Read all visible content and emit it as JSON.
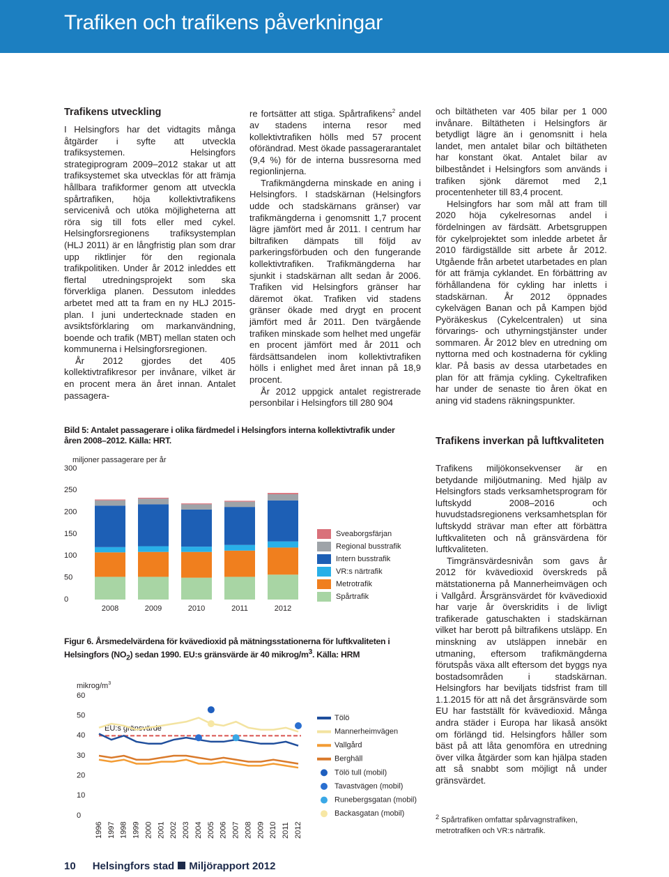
{
  "header": {
    "title": "Trafiken och trafikens påverkningar"
  },
  "column1": {
    "heading": "Trafikens utveckling",
    "paragraphs": [
      "I Helsingfors har det vidtagits många åtgärder i syfte att utveckla trafiksystemen. Helsingfors strategiprogram 2009–2012 stakar ut att trafiksystemet ska utvecklas för att främja hållbara trafikformer genom att utveckla spårtrafiken, höja kollektivtrafikens servicenivå och utöka möjligheterna att röra sig till fots eller med cykel. Helsingforsregionens trafiksystemplan (HLJ 2011) är en långfristig plan som drar upp riktlinjer för den regionala trafikpolitiken. Under år 2012 inleddes ett flertal utredningsprojekt som ska förverkliga planen. Dessutom inleddes arbetet med att ta fram en ny HLJ 2015-plan. I juni undertecknade staden en avsiktsförklaring om markanvändning, boende och trafik (MBT) mellan staten och kommunerna i Helsingforsregionen.",
      "År 2012 gjordes det 405 kollektivtrafikresor per invånare, vilket är en procent mera än året innan. Antalet passagera-"
    ]
  },
  "column2": {
    "first": {
      "text": "re fortsätter att stiga. Spårtrafikens",
      "sup": "2",
      "text_after": " andel av stadens interna resor med kollektivtrafiken hölls med 57 procent oförändrad. Mest ökade passagerarantalet (9,4 %) för de interna bussresorna med regionlinjerna."
    },
    "paragraphs": [
      "Trafikmängderna minskade en aning i Helsingfors. I stadskärnan (Helsingfors udde och stadskärnans gränser) var trafikmängderna i genomsnitt 1,7 procent lägre jämfört med år 2011. I centrum har biltrafiken dämpats till följd av parkeringsförbuden och den fungerande kollektivtrafiken. Trafikmängderna har sjunkit i stadskärnan allt sedan år 2006. Trafiken vid Helsingfors gränser har däremot ökat. Trafiken vid stadens gränser ökade med drygt en procent jämfört med år 2011. Den tvärgående trafiken minskade som helhet med ungefär en procent jämfört med år 2011 och färdsättsandelen inom kollektivtrafiken hölls i enlighet med året innan på 18,9 procent.",
      "År 2012 uppgick antalet registrerade personbilar i Helsingfors till 280 904"
    ]
  },
  "column3": {
    "paragraphs": [
      "och biltätheten var 405 bilar per 1 000 invånare. Biltätheten i Helsingfors är betydligt lägre än i genomsnitt i hela landet, men antalet bilar och biltätheten har konstant ökat. Antalet bilar av bilbeståndet i Helsingfors som används i trafiken sjönk däremot med 2,1 procentenheter till 83,4 procent.",
      "Helsingfors har som mål att fram till 2020 höja cykelresornas andel i fördelningen av färdsätt. Arbetsgruppen för cykelprojektet som inledde arbetet år 2010 färdigställde sitt arbete år 2012. Utgående från arbetet utarbetades en plan för att främja cyklandet. En förbättring av förhållandena för cykling har inletts i stadskärnan. År 2012 öppnades cykelvägen Banan och på Kampen bjöd Pyöräkeskus (Cykelcentralen) ut sina förvarings- och uthyrningstjänster under sommaren. År 2012 blev en utredning om nyttorna med och kostnaderna för cykling klar. På basis av dessa utarbetades en plan för att främja cykling. Cykeltrafiken har under de senaste tio åren ökat en aning vid stadens räkningspunkter."
    ]
  },
  "column4": {
    "heading": "Trafikens inverkan på luftkvaliteten",
    "paragraphs": [
      "Trafikens miljökonsekvenser är en betydande miljöutmaning. Med hjälp av Helsingfors stads verksamhetsprogram för luftskydd 2008–2016 och huvudstadsregionens verksamhetsplan för luftskydd strävar man efter att förbättra luftkvaliteten och nå gränsvärdena för luftkvaliteten.",
      "Timgränsvärdesnivån som gavs år 2012 för kvävedioxid överskreds på mätstationerna på Mannerheimvägen och i Vallgård. Årsgränsvärdet för kvävedioxid har varje år överskridits i de livligt trafikerade gatuschakten i stadskärnan vilket har berott på biltrafikens utsläpp. En minskning av utsläppen innebär en utmaning, eftersom trafikmängderna förutspås växa allt eftersom det byggs nya bostadsområden i stadskärnan. Helsingfors har beviljats tidsfrist fram till 1.1.2015 för att nå det årsgränsvärde som EU har fastställt för kvävedioxid. Många andra städer i Europa har likaså ansökt om förlängd tid. Helsingfors håller som bäst på att låta genomföra en utredning över vilka åtgärder som kan hjälpa staden att så snabbt som möjligt nå under gränsvärdet."
    ],
    "footnote": {
      "sup": "2",
      "text": " Spårtrafiken omfattar spårvagnstrafiken, metrotrafiken och VR:s närtrafik."
    }
  },
  "footer": {
    "page": "10",
    "publisher": "Helsingfors stad",
    "report": "Miljörapport 2012"
  },
  "chart_data": [
    {
      "type": "stacked_bar",
      "title": "Bild 5: Antalet passagerare i olika färdmedel i Helsingfors interna kollektivtrafik under åren 2008–2012. Källa: HRT.",
      "ylabel": "miljoner passagerare per år",
      "categories": [
        "2008",
        "2009",
        "2010",
        "2011",
        "2012"
      ],
      "series": [
        {
          "name": "Spårtrafik",
          "color": "#a8d5a4",
          "values": [
            52,
            52,
            50,
            52,
            57
          ]
        },
        {
          "name": "Metrotrafik",
          "color": "#f07f1e",
          "values": [
            56,
            57,
            59,
            60,
            62
          ]
        },
        {
          "name": "VR:s närtrafik",
          "color": "#29b0e8",
          "values": [
            12,
            13,
            12,
            13,
            14
          ]
        },
        {
          "name": "Intern busstrafik",
          "color": "#1d5fb5",
          "values": [
            95,
            96,
            85,
            87,
            94
          ]
        },
        {
          "name": "Regional busstrafik",
          "color": "#9ea3a8",
          "values": [
            12,
            13,
            12,
            12,
            14
          ]
        },
        {
          "name": "Sveaborgsfärjan",
          "color": "#d9717a",
          "values": [
            2,
            2,
            2,
            2,
            3
          ]
        }
      ],
      "ylim": [
        0,
        300
      ],
      "yticks": [
        0,
        50,
        100,
        150,
        200,
        250,
        300
      ],
      "grid": false
    },
    {
      "type": "line",
      "title": {
        "text": "Figur 6. Årsmedelvärdena för kvävedioxid på mätningsstationerna för luftkvaliteten i Helsingfors (NO",
        "sub": "2",
        "text_after": ") sedan 1990. EU:s gränsvärde är 40 mikrog/m",
        "sup": "3",
        "text_end": ". Källa: HRM"
      },
      "ylabel": {
        "text": "mikrog/m",
        "sup": "3"
      },
      "x": [
        1996,
        1997,
        1998,
        1999,
        2000,
        2001,
        2002,
        2003,
        2004,
        2005,
        2006,
        2007,
        2008,
        2009,
        2010,
        2011,
        2012
      ],
      "xlim": [
        1996,
        2012
      ],
      "xticks": [
        1996,
        1997,
        1998,
        1999,
        2000,
        2001,
        2002,
        2003,
        2004,
        2005,
        2006,
        2007,
        2008,
        2009,
        2010,
        2011,
        2012
      ],
      "ylim": [
        0,
        60
      ],
      "yticks": [
        0,
        10,
        20,
        30,
        40,
        50,
        60
      ],
      "grid": false,
      "limit": {
        "value": 40,
        "label": "EU:s gränsvärde",
        "color": "#d9534f"
      },
      "series": [
        {
          "name": "Tölö",
          "color": "#1f4e9c",
          "style": "line",
          "values": [
            41,
            38,
            40,
            37,
            36,
            36,
            38,
            39,
            38,
            37,
            37,
            38,
            37,
            36,
            36,
            37,
            35
          ]
        },
        {
          "name": "Mannerheimvägen",
          "color": "#f3e3a0",
          "style": "line",
          "values": [
            44,
            46,
            45,
            43,
            44,
            45,
            46,
            47,
            49,
            46,
            45,
            47,
            44,
            43,
            43,
            44,
            42
          ]
        },
        {
          "name": "Vallgård",
          "color": "#f39c34",
          "style": "line",
          "values": [
            28,
            27,
            28,
            26,
            26,
            27,
            27,
            28,
            26,
            26,
            27,
            26,
            25,
            25,
            26,
            25,
            24
          ]
        },
        {
          "name": "Berghäll",
          "color": "#d97a2b",
          "style": "line",
          "values": [
            30,
            29,
            30,
            28,
            28,
            29,
            30,
            30,
            29,
            28,
            29,
            28,
            27,
            27,
            28,
            27,
            26
          ]
        },
        {
          "name": "Tölö tull (mobil)",
          "color": "#1f5fbf",
          "style": "marker",
          "values": [
            null,
            null,
            null,
            null,
            null,
            null,
            null,
            null,
            null,
            53,
            null,
            null,
            null,
            null,
            null,
            null,
            null
          ]
        },
        {
          "name": "Tavastvägen (mobil)",
          "color": "#2a6fd0",
          "style": "marker",
          "values": [
            null,
            null,
            null,
            null,
            null,
            null,
            null,
            null,
            39,
            null,
            null,
            null,
            null,
            null,
            null,
            null,
            45
          ]
        },
        {
          "name": "Runebergsgatan (mobil)",
          "color": "#3aa8e6",
          "style": "marker",
          "values": [
            null,
            null,
            null,
            null,
            null,
            null,
            null,
            null,
            null,
            null,
            null,
            39,
            null,
            null,
            null,
            null,
            null
          ]
        },
        {
          "name": "Backasgatan (mobil)",
          "color": "#f7e7a4",
          "style": "marker",
          "values": [
            null,
            null,
            null,
            null,
            null,
            null,
            null,
            null,
            null,
            46,
            null,
            null,
            null,
            null,
            null,
            null,
            null
          ]
        }
      ]
    }
  ]
}
